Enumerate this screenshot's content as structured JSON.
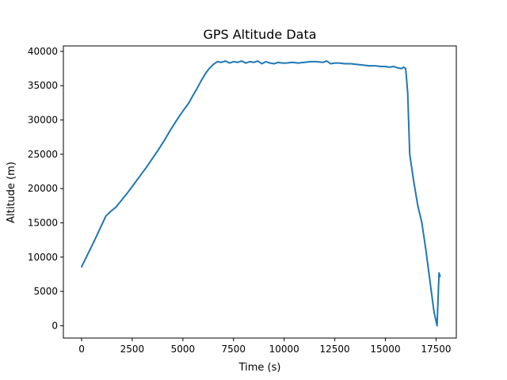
{
  "chart_data": {
    "type": "line",
    "title": "GPS Altitude Data",
    "xlabel": "Time (s)",
    "ylabel": "Altitude (m)",
    "xlim": [
      -900,
      18500
    ],
    "ylim": [
      -1800,
      40800
    ],
    "xticks": [
      0,
      2500,
      5000,
      7500,
      10000,
      12500,
      15000,
      17500
    ],
    "yticks": [
      0,
      5000,
      10000,
      15000,
      20000,
      25000,
      30000,
      35000,
      40000
    ],
    "grid": false,
    "colors": {
      "series": "#1f77b4"
    },
    "series": [
      {
        "x": [
          0,
          300,
          600,
          900,
          1200,
          1450,
          1700,
          2000,
          2300,
          2600,
          2900,
          3200,
          3500,
          3800,
          4100,
          4400,
          4700,
          5000,
          5300,
          5500,
          5700,
          5900,
          6100,
          6300,
          6500,
          6700,
          6900,
          7100,
          7300,
          7500,
          7700,
          7900,
          8100,
          8300,
          8500,
          8700,
          8900,
          9100,
          9300,
          9500,
          9700,
          9900,
          10100,
          10400,
          10700,
          11000,
          11300,
          11600,
          11900,
          12100,
          12300,
          12500,
          12700,
          13000,
          13300,
          13600,
          13900,
          14200,
          14500,
          14800,
          15000,
          15200,
          15400,
          15600,
          15800,
          15900,
          16000,
          16100,
          16200,
          16400,
          16600,
          16800,
          17000,
          17200,
          17400,
          17550,
          17600,
          17650,
          17700
        ],
        "y": [
          8600,
          10400,
          12200,
          14100,
          16000,
          16700,
          17300,
          18400,
          19500,
          20700,
          21900,
          23100,
          24400,
          25700,
          27100,
          28600,
          30000,
          31300,
          32500,
          33600,
          34600,
          35700,
          36700,
          37500,
          38100,
          38500,
          38400,
          38600,
          38300,
          38500,
          38400,
          38600,
          38300,
          38500,
          38400,
          38600,
          38200,
          38500,
          38300,
          38200,
          38400,
          38300,
          38300,
          38400,
          38300,
          38400,
          38500,
          38500,
          38400,
          38600,
          38200,
          38300,
          38300,
          38200,
          38200,
          38100,
          38000,
          37900,
          37900,
          37800,
          37800,
          37700,
          37800,
          37600,
          37500,
          37700,
          37500,
          34000,
          25000,
          21000,
          17500,
          15000,
          11000,
          6500,
          2000,
          0,
          4000,
          7700,
          7200
        ]
      }
    ]
  }
}
